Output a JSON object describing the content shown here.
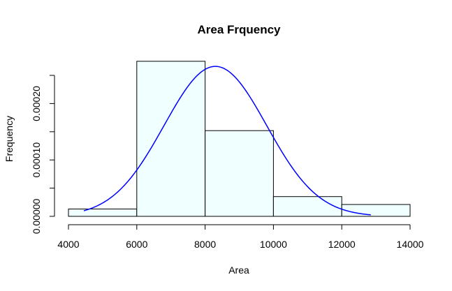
{
  "chart_data": {
    "type": "bar",
    "title": "Area Frquency",
    "xlabel": "Area",
    "ylabel": "Frequency",
    "xlim": [
      4000,
      14000
    ],
    "ylim": [
      0,
      0.00025
    ],
    "bins": [
      {
        "x0": 4000,
        "x1": 6000,
        "value": 1.3e-05
      },
      {
        "x0": 6000,
        "x1": 8000,
        "value": 0.000275
      },
      {
        "x0": 8000,
        "x1": 10000,
        "value": 0.000152
      },
      {
        "x0": 10000,
        "x1": 12000,
        "value": 3.5e-05
      },
      {
        "x0": 12000,
        "x1": 14000,
        "value": 2.1e-05
      }
    ],
    "x_ticks": [
      "4000",
      "6000",
      "8000",
      "10000",
      "12000",
      "14000"
    ],
    "y_ticks": [
      "0.00000",
      "0.00010",
      "0.00020"
    ],
    "density_curve": {
      "mean": 8300,
      "sd": 1500,
      "x_start": 4450,
      "x_end": 12850,
      "color": "#0000ff"
    },
    "bar_fill": "#f0ffff",
    "bar_stroke": "#000000"
  }
}
